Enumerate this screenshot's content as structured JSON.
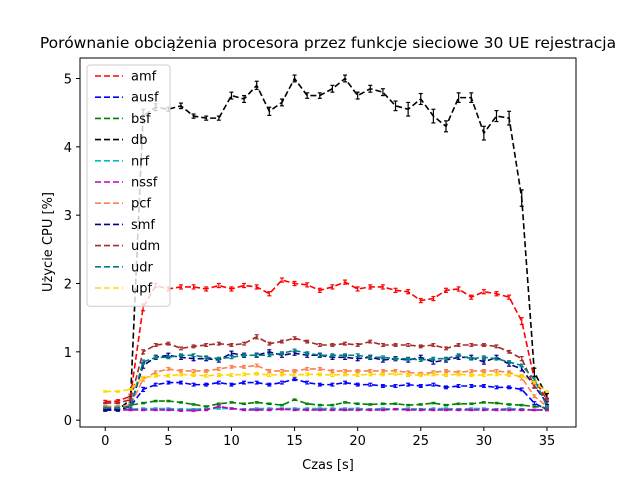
{
  "chart_data": {
    "type": "line",
    "title": "Porównanie obciążenia procesora przez funkcje sieciowe 30 UE rejestracja",
    "xlabel": "Czas [s]",
    "ylabel": "Użycie CPU [%]",
    "xlim": [
      -2.0,
      37.3
    ],
    "ylim": [
      -0.1,
      5.3
    ],
    "xticks": [
      0,
      5,
      10,
      15,
      20,
      25,
      30,
      35
    ],
    "yticks": [
      0,
      1,
      2,
      3,
      4,
      5
    ],
    "line_style": "dashed",
    "error_bars": true,
    "grid": false,
    "legend_position": "top-left",
    "x": [
      0,
      1,
      2,
      3,
      4,
      5,
      6,
      7,
      8,
      9,
      10,
      11,
      12,
      13,
      14,
      15,
      16,
      17,
      18,
      19,
      20,
      21,
      22,
      23,
      24,
      25,
      26,
      27,
      28,
      29,
      30,
      31,
      32,
      33,
      34,
      35
    ],
    "series": [
      {
        "name": "amf",
        "color": "#ff0000",
        "values": [
          0.27,
          0.28,
          0.35,
          1.65,
          1.97,
          1.92,
          1.95,
          1.95,
          1.92,
          1.97,
          1.92,
          1.97,
          1.95,
          1.85,
          2.05,
          2.0,
          1.98,
          1.9,
          1.95,
          2.02,
          1.92,
          1.95,
          1.95,
          1.9,
          1.88,
          1.75,
          1.78,
          1.9,
          1.92,
          1.8,
          1.88,
          1.85,
          1.8,
          1.45,
          0.6,
          0.3
        ],
        "errors": [
          0.02,
          0.02,
          0.03,
          0.05,
          0.03,
          0.03,
          0.03,
          0.03,
          0.03,
          0.03,
          0.03,
          0.03,
          0.03,
          0.03,
          0.03,
          0.03,
          0.03,
          0.03,
          0.03,
          0.03,
          0.03,
          0.03,
          0.03,
          0.03,
          0.03,
          0.03,
          0.03,
          0.03,
          0.03,
          0.03,
          0.03,
          0.03,
          0.03,
          0.05,
          0.04,
          0.02
        ]
      },
      {
        "name": "ausf",
        "color": "#0000ff",
        "values": [
          0.16,
          0.16,
          0.2,
          0.45,
          0.52,
          0.55,
          0.55,
          0.52,
          0.52,
          0.55,
          0.52,
          0.55,
          0.55,
          0.52,
          0.55,
          0.6,
          0.55,
          0.52,
          0.52,
          0.55,
          0.52,
          0.52,
          0.5,
          0.5,
          0.52,
          0.5,
          0.52,
          0.48,
          0.5,
          0.5,
          0.5,
          0.48,
          0.48,
          0.45,
          0.25,
          0.15
        ],
        "errors": [
          0.01,
          0.01,
          0.02,
          0.03,
          0.02,
          0.02,
          0.02,
          0.02,
          0.02,
          0.02,
          0.02,
          0.02,
          0.02,
          0.02,
          0.02,
          0.02,
          0.02,
          0.02,
          0.02,
          0.02,
          0.02,
          0.02,
          0.02,
          0.02,
          0.02,
          0.02,
          0.02,
          0.02,
          0.02,
          0.02,
          0.02,
          0.02,
          0.02,
          0.02,
          0.02,
          0.01
        ]
      },
      {
        "name": "bsf",
        "color": "#008000",
        "values": [
          0.2,
          0.2,
          0.22,
          0.25,
          0.28,
          0.28,
          0.26,
          0.23,
          0.2,
          0.24,
          0.26,
          0.24,
          0.26,
          0.24,
          0.22,
          0.3,
          0.24,
          0.22,
          0.22,
          0.26,
          0.24,
          0.23,
          0.24,
          0.24,
          0.22,
          0.23,
          0.25,
          0.22,
          0.24,
          0.24,
          0.26,
          0.25,
          0.23,
          0.22,
          0.2,
          0.18
        ],
        "errors": [
          0.01,
          0.01,
          0.01,
          0.01,
          0.01,
          0.01,
          0.01,
          0.01,
          0.01,
          0.01,
          0.01,
          0.01,
          0.01,
          0.01,
          0.01,
          0.01,
          0.01,
          0.01,
          0.01,
          0.01,
          0.01,
          0.01,
          0.01,
          0.01,
          0.01,
          0.01,
          0.01,
          0.01,
          0.01,
          0.01,
          0.01,
          0.01,
          0.01,
          0.01,
          0.01,
          0.01
        ]
      },
      {
        "name": "db",
        "color": "#000000",
        "values": [
          0.15,
          0.15,
          0.3,
          4.45,
          4.58,
          4.55,
          4.6,
          4.45,
          4.42,
          4.42,
          4.75,
          4.7,
          4.9,
          4.52,
          4.65,
          5.0,
          4.75,
          4.75,
          4.85,
          5.0,
          4.75,
          4.85,
          4.8,
          4.6,
          4.55,
          4.7,
          4.45,
          4.3,
          4.72,
          4.72,
          4.2,
          4.45,
          4.42,
          3.25,
          0.7,
          0.35
        ],
        "errors": [
          0.02,
          0.02,
          0.05,
          0.1,
          0.05,
          0.03,
          0.04,
          0.03,
          0.03,
          0.03,
          0.05,
          0.05,
          0.06,
          0.06,
          0.05,
          0.05,
          0.04,
          0.04,
          0.05,
          0.05,
          0.05,
          0.05,
          0.05,
          0.07,
          0.1,
          0.08,
          0.1,
          0.08,
          0.07,
          0.07,
          0.1,
          0.08,
          0.1,
          0.12,
          0.06,
          0.04
        ]
      },
      {
        "name": "nrf",
        "color": "#00bfbf",
        "values": [
          0.15,
          0.15,
          0.16,
          0.17,
          0.17,
          0.17,
          0.16,
          0.16,
          0.17,
          0.17,
          0.17,
          0.16,
          0.17,
          0.17,
          0.17,
          0.17,
          0.17,
          0.17,
          0.17,
          0.17,
          0.17,
          0.16,
          0.17,
          0.16,
          0.17,
          0.16,
          0.17,
          0.17,
          0.16,
          0.17,
          0.17,
          0.16,
          0.17,
          0.16,
          0.15,
          0.15
        ],
        "errors": [
          0.01,
          0.01,
          0.01,
          0.01,
          0.01,
          0.01,
          0.01,
          0.01,
          0.01,
          0.01,
          0.01,
          0.01,
          0.01,
          0.01,
          0.01,
          0.01,
          0.01,
          0.01,
          0.01,
          0.01,
          0.01,
          0.01,
          0.01,
          0.01,
          0.01,
          0.01,
          0.01,
          0.01,
          0.01,
          0.01,
          0.01,
          0.01,
          0.01,
          0.01,
          0.01,
          0.01
        ]
      },
      {
        "name": "nssf",
        "color": "#bf00bf",
        "values": [
          0.15,
          0.15,
          0.15,
          0.15,
          0.15,
          0.15,
          0.14,
          0.14,
          0.15,
          0.2,
          0.17,
          0.15,
          0.15,
          0.15,
          0.16,
          0.15,
          0.15,
          0.15,
          0.15,
          0.15,
          0.15,
          0.15,
          0.15,
          0.16,
          0.15,
          0.15,
          0.15,
          0.15,
          0.15,
          0.15,
          0.15,
          0.15,
          0.15,
          0.15,
          0.15,
          0.15
        ],
        "errors": [
          0.01,
          0.01,
          0.01,
          0.01,
          0.01,
          0.01,
          0.01,
          0.01,
          0.01,
          0.01,
          0.01,
          0.01,
          0.01,
          0.01,
          0.01,
          0.01,
          0.01,
          0.01,
          0.01,
          0.01,
          0.01,
          0.01,
          0.01,
          0.01,
          0.01,
          0.01,
          0.01,
          0.01,
          0.01,
          0.01,
          0.01,
          0.01,
          0.01,
          0.01,
          0.01,
          0.01
        ]
      },
      {
        "name": "pcf",
        "color": "#ff7f50",
        "values": [
          0.2,
          0.2,
          0.22,
          0.6,
          0.7,
          0.75,
          0.72,
          0.72,
          0.72,
          0.75,
          0.78,
          0.78,
          0.8,
          0.72,
          0.72,
          0.72,
          0.75,
          0.75,
          0.72,
          0.72,
          0.72,
          0.72,
          0.72,
          0.72,
          0.7,
          0.68,
          0.7,
          0.72,
          0.7,
          0.72,
          0.72,
          0.72,
          0.7,
          0.62,
          0.35,
          0.2
        ],
        "errors": [
          0.01,
          0.01,
          0.02,
          0.03,
          0.02,
          0.02,
          0.02,
          0.02,
          0.02,
          0.02,
          0.02,
          0.02,
          0.02,
          0.02,
          0.02,
          0.02,
          0.02,
          0.02,
          0.02,
          0.02,
          0.02,
          0.02,
          0.02,
          0.02,
          0.02,
          0.02,
          0.02,
          0.02,
          0.02,
          0.02,
          0.02,
          0.02,
          0.02,
          0.03,
          0.02,
          0.01
        ]
      },
      {
        "name": "smf",
        "color": "#00008b",
        "values": [
          0.15,
          0.15,
          0.2,
          0.8,
          0.92,
          0.95,
          0.92,
          0.9,
          0.9,
          0.88,
          0.98,
          0.95,
          0.95,
          1.0,
          0.95,
          0.98,
          0.95,
          0.95,
          0.92,
          0.92,
          0.9,
          0.92,
          0.88,
          0.9,
          0.88,
          0.92,
          0.85,
          0.88,
          0.92,
          0.92,
          0.85,
          0.92,
          0.82,
          0.75,
          0.5,
          0.25
        ],
        "errors": [
          0.01,
          0.01,
          0.02,
          0.04,
          0.03,
          0.03,
          0.03,
          0.03,
          0.03,
          0.03,
          0.03,
          0.03,
          0.03,
          0.03,
          0.03,
          0.03,
          0.03,
          0.03,
          0.03,
          0.03,
          0.03,
          0.03,
          0.03,
          0.03,
          0.03,
          0.03,
          0.03,
          0.03,
          0.03,
          0.03,
          0.03,
          0.03,
          0.03,
          0.03,
          0.03,
          0.02
        ]
      },
      {
        "name": "udm",
        "color": "#a52a2a",
        "values": [
          0.25,
          0.25,
          0.3,
          1.0,
          1.1,
          1.12,
          1.05,
          1.08,
          1.1,
          1.12,
          1.1,
          1.12,
          1.22,
          1.12,
          1.15,
          1.2,
          1.15,
          1.1,
          1.1,
          1.12,
          1.1,
          1.15,
          1.1,
          1.1,
          1.1,
          1.08,
          1.1,
          1.05,
          1.1,
          1.1,
          1.1,
          1.08,
          1.0,
          0.9,
          0.5,
          0.3
        ],
        "errors": [
          0.01,
          0.01,
          0.02,
          0.03,
          0.02,
          0.02,
          0.02,
          0.02,
          0.02,
          0.02,
          0.02,
          0.02,
          0.03,
          0.02,
          0.02,
          0.02,
          0.02,
          0.02,
          0.02,
          0.02,
          0.02,
          0.02,
          0.02,
          0.02,
          0.02,
          0.02,
          0.02,
          0.02,
          0.02,
          0.02,
          0.02,
          0.02,
          0.02,
          0.03,
          0.02,
          0.02
        ]
      },
      {
        "name": "udr",
        "color": "#008080",
        "values": [
          0.18,
          0.18,
          0.2,
          0.85,
          0.92,
          0.92,
          0.95,
          0.95,
          0.92,
          0.9,
          0.92,
          0.95,
          0.95,
          0.95,
          0.98,
          1.02,
          0.98,
          0.95,
          0.95,
          0.95,
          0.95,
          0.92,
          0.92,
          0.9,
          0.9,
          0.88,
          0.9,
          0.9,
          0.95,
          0.9,
          0.92,
          0.9,
          0.85,
          0.8,
          0.6,
          0.2
        ],
        "errors": [
          0.01,
          0.01,
          0.02,
          0.03,
          0.02,
          0.02,
          0.02,
          0.02,
          0.02,
          0.02,
          0.02,
          0.02,
          0.02,
          0.02,
          0.02,
          0.02,
          0.02,
          0.02,
          0.02,
          0.02,
          0.02,
          0.02,
          0.02,
          0.02,
          0.02,
          0.02,
          0.02,
          0.02,
          0.02,
          0.02,
          0.02,
          0.02,
          0.02,
          0.02,
          0.02,
          0.01
        ]
      },
      {
        "name": "upf",
        "color": "#ffd700",
        "values": [
          0.42,
          0.42,
          0.45,
          0.62,
          0.65,
          0.65,
          0.67,
          0.66,
          0.65,
          0.66,
          0.66,
          0.67,
          0.68,
          0.66,
          0.67,
          0.66,
          0.67,
          0.67,
          0.66,
          0.67,
          0.66,
          0.67,
          0.67,
          0.68,
          0.66,
          0.66,
          0.67,
          0.66,
          0.67,
          0.66,
          0.66,
          0.67,
          0.66,
          0.65,
          0.55,
          0.42
        ],
        "errors": [
          0.01,
          0.01,
          0.01,
          0.02,
          0.02,
          0.02,
          0.02,
          0.02,
          0.02,
          0.02,
          0.02,
          0.02,
          0.02,
          0.02,
          0.02,
          0.02,
          0.02,
          0.02,
          0.02,
          0.02,
          0.02,
          0.02,
          0.02,
          0.02,
          0.02,
          0.02,
          0.02,
          0.02,
          0.02,
          0.02,
          0.02,
          0.02,
          0.02,
          0.02,
          0.02,
          0.01
        ]
      }
    ]
  }
}
